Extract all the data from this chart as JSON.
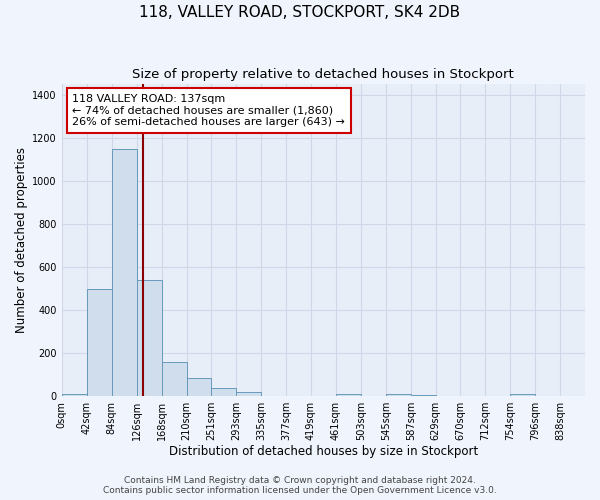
{
  "title": "118, VALLEY ROAD, STOCKPORT, SK4 2DB",
  "subtitle": "Size of property relative to detached houses in Stockport",
  "xlabel": "Distribution of detached houses by size in Stockport",
  "ylabel": "Number of detached properties",
  "bar_color": "#cfdded",
  "bar_edge_color": "#6699bb",
  "bg_color": "#e8eef8",
  "grid_color": "#d0d8e8",
  "bin_labels": [
    "0sqm",
    "42sqm",
    "84sqm",
    "126sqm",
    "168sqm",
    "210sqm",
    "251sqm",
    "293sqm",
    "335sqm",
    "377sqm",
    "419sqm",
    "461sqm",
    "503sqm",
    "545sqm",
    "587sqm",
    "629sqm",
    "670sqm",
    "712sqm",
    "754sqm",
    "796sqm",
    "838sqm"
  ],
  "bar_values": [
    10,
    500,
    1150,
    540,
    160,
    85,
    38,
    20,
    0,
    0,
    0,
    8,
    0,
    12,
    5,
    0,
    0,
    0,
    8,
    0,
    0
  ],
  "bin_edges": [
    0,
    42,
    84,
    126,
    168,
    210,
    251,
    293,
    335,
    377,
    419,
    461,
    503,
    545,
    587,
    629,
    670,
    712,
    754,
    796,
    838
  ],
  "property_line_x": 137,
  "property_line_color": "#8b0000",
  "ylim": [
    0,
    1450
  ],
  "yticks": [
    0,
    200,
    400,
    600,
    800,
    1000,
    1200,
    1400
  ],
  "annotation_line1": "118 VALLEY ROAD: 137sqm",
  "annotation_line2": "← 74% of detached houses are smaller (1,860)",
  "annotation_line3": "26% of semi-detached houses are larger (643) →",
  "annotation_box_color": "#ffffff",
  "annotation_box_edge": "#cc0000",
  "footer_text": "Contains HM Land Registry data © Crown copyright and database right 2024.\nContains public sector information licensed under the Open Government Licence v3.0.",
  "title_fontsize": 11,
  "subtitle_fontsize": 9.5,
  "xlabel_fontsize": 8.5,
  "ylabel_fontsize": 8.5,
  "tick_fontsize": 7,
  "annotation_fontsize": 8,
  "footer_fontsize": 6.5,
  "fig_bg": "#f0f4fc"
}
